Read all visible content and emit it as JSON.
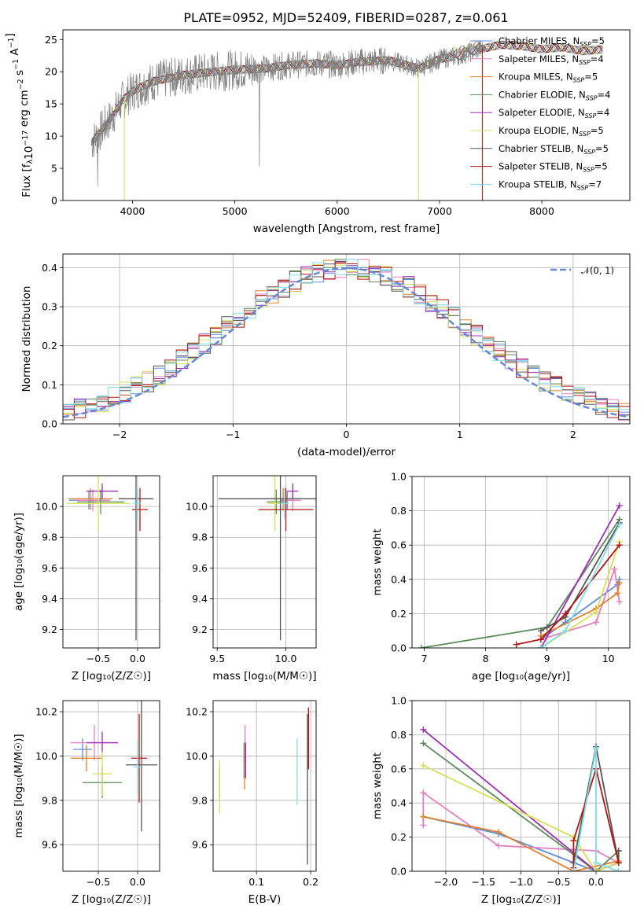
{
  "title": "PLATE=0952, MJD=52409, FIBERID=0287, z=0.061",
  "colors": {
    "Chabrier MILES": "#5f8fd9",
    "Salpeter MILES": "#e67fbf",
    "Kroupa MILES": "#e0802a",
    "Chabrier ELODIE": "#5c8a5c",
    "Salpeter ELODIE": "#9a2fb0",
    "Kroupa ELODIE": "#d4e157",
    "Chabrier STELIB": "#555555",
    "Salpeter STELIB": "#b51414",
    "Kroupa STELIB": "#7fdde6",
    "data": "#808080"
  },
  "chart_data": [
    {
      "id": "spectrum",
      "type": "line",
      "title": "PLATE=0952, MJD=52409, FIBERID=0287, z=0.061",
      "xlabel": "wavelength [Angstrom, rest frame]",
      "ylabel": "Flux [f_λ10^{-17} erg cm^{-2} s^{-1} A^{-1}]",
      "xlim": [
        3320,
        8860
      ],
      "ylim": [
        0,
        26.5
      ],
      "xticks": [
        4000,
        5000,
        6000,
        7000,
        8000
      ],
      "yticks": [
        0,
        5,
        10,
        15,
        20,
        25
      ],
      "grid": false,
      "legend_position": "right",
      "legend": [
        {
          "base": "Chabrier MILES, N",
          "sub": "SSP",
          "tail": "=5"
        },
        {
          "base": "Salpeter MILES, N",
          "sub": "SSP",
          "tail": "=4"
        },
        {
          "base": "Kroupa MILES, N",
          "sub": "SSP",
          "tail": "=5"
        },
        {
          "base": "Chabrier ELODIE, N",
          "sub": "SSP",
          "tail": "=4"
        },
        {
          "base": "Salpeter ELODIE, N",
          "sub": "SSP",
          "tail": "=4"
        },
        {
          "base": "Kroupa ELODIE, N",
          "sub": "SSP",
          "tail": "=5"
        },
        {
          "base": "Chabrier STELIB, N",
          "sub": "SSP",
          "tail": "=5"
        },
        {
          "base": "Salpeter STELIB, N",
          "sub": "SSP",
          "tail": "=5"
        },
        {
          "base": "Kroupa STELIB, N",
          "sub": "SSP",
          "tail": "=7"
        }
      ],
      "continuum": {
        "x": [
          3600,
          3700,
          3800,
          3900,
          4000,
          4200,
          4500,
          4800,
          5000,
          5300,
          5500,
          5800,
          6000,
          6200,
          6500,
          6800,
          7000,
          7200,
          7400,
          7600,
          7800,
          8000,
          8200,
          8400,
          8600
        ],
        "y": [
          9,
          11,
          13,
          15.5,
          17,
          18.5,
          19.5,
          20,
          20.3,
          20.5,
          21,
          21.3,
          21,
          21.5,
          21.8,
          20.5,
          22,
          22.5,
          23.5,
          24.2,
          24,
          23.5,
          23.8,
          23.2,
          23.5
        ]
      },
      "drops": [
        {
          "series": "Kroupa ELODIE",
          "x": 3920,
          "y": 0
        },
        {
          "series": "Kroupa ELODIE",
          "x": 6795,
          "y": 0
        },
        {
          "series": "Salpeter STELIB",
          "x": 7420,
          "y": 0
        }
      ]
    },
    {
      "id": "residual-hist",
      "type": "line",
      "xlabel": "(data-model)/error",
      "ylabel": "Normed distribution",
      "xlim": [
        -2.5,
        2.5
      ],
      "ylim": [
        0,
        0.435
      ],
      "xticks": [
        -2,
        -1,
        0,
        1,
        2
      ],
      "yticks": [
        0.0,
        0.1,
        0.2,
        0.3,
        0.4
      ],
      "grid": true,
      "legend_position": "top-right",
      "reference_label": "𝒩(0, 1)",
      "bin_width": 0.1
    },
    {
      "id": "age-vs-Z",
      "type": "scatter",
      "xlabel": "Z [log₁₀(Z/Z☉)]",
      "ylabel": "age  [log₁₀(age/yr)]",
      "xlim": [
        -0.95,
        0.28
      ],
      "ylim": [
        9.08,
        10.2
      ],
      "xticks": [
        -0.5,
        0.0
      ],
      "yticks": [
        9.2,
        9.4,
        9.6,
        9.8,
        10.0
      ],
      "grid": true,
      "points": [
        {
          "series": "Chabrier MILES",
          "x": -0.62,
          "y": 10.04,
          "xerr": 0.25,
          "yerr": 0.06
        },
        {
          "series": "Salpeter MILES",
          "x": -0.57,
          "y": 10.04,
          "xerr": 0.22,
          "yerr": 0.07
        },
        {
          "series": "Kroupa MILES",
          "x": -0.6,
          "y": 10.05,
          "xerr": 0.28,
          "yerr": 0.07
        },
        {
          "series": "Chabrier ELODIE",
          "x": -0.47,
          "y": 10.03,
          "xerr": 0.3,
          "yerr": 0.08
        },
        {
          "series": "Salpeter ELODIE",
          "x": -0.45,
          "y": 10.1,
          "xerr": 0.2,
          "yerr": 0.05
        },
        {
          "series": "Kroupa ELODIE",
          "x": -0.5,
          "y": 10.02,
          "xerr": 0.4,
          "yerr": 0.18
        },
        {
          "series": "Chabrier STELIB",
          "x": -0.02,
          "y": 10.05,
          "xerr": 0.22,
          "yerr": 0.92
        },
        {
          "series": "Salpeter STELIB",
          "x": 0.03,
          "y": 9.98,
          "xerr": 0.1,
          "yerr": 0.14
        },
        {
          "series": "Kroupa STELIB",
          "x": -0.01,
          "y": 10.02,
          "xerr": 0.05,
          "yerr": 0.1
        }
      ]
    },
    {
      "id": "age-vs-mass",
      "type": "scatter",
      "xlabel": "mass [log₁₀(M/M☉)]",
      "xlim": [
        9.47,
        10.22
      ],
      "ylim": [
        9.08,
        10.2
      ],
      "xticks": [
        9.5,
        10.0
      ],
      "yticks": [
        9.2,
        9.4,
        9.6,
        9.8,
        10.0
      ],
      "grid": true,
      "points": [
        {
          "series": "Chabrier MILES",
          "x": 10.01,
          "y": 10.04,
          "xerr": 0.05,
          "yerr": 0.06
        },
        {
          "series": "Salpeter MILES",
          "x": 10.05,
          "y": 10.04,
          "xerr": 0.06,
          "yerr": 0.07
        },
        {
          "series": "Kroupa MILES",
          "x": 9.98,
          "y": 10.05,
          "xerr": 0.06,
          "yerr": 0.07
        },
        {
          "series": "Chabrier ELODIE",
          "x": 9.93,
          "y": 10.03,
          "xerr": 0.07,
          "yerr": 0.08
        },
        {
          "series": "Salpeter ELODIE",
          "x": 10.05,
          "y": 10.1,
          "xerr": 0.04,
          "yerr": 0.05
        },
        {
          "series": "Kroupa ELODIE",
          "x": 9.92,
          "y": 10.02,
          "xerr": 0.05,
          "yerr": 0.18
        },
        {
          "series": "Chabrier STELIB",
          "x": 9.96,
          "y": 10.05,
          "xerr": 0.45,
          "yerr": 0.92
        },
        {
          "series": "Salpeter STELIB",
          "x": 10.0,
          "y": 9.98,
          "xerr": 0.2,
          "yerr": 0.14
        },
        {
          "series": "Kroupa STELIB",
          "x": 9.99,
          "y": 10.02,
          "xerr": 0.03,
          "yerr": 0.1
        }
      ]
    },
    {
      "id": "weight-vs-age",
      "type": "line",
      "xlabel": "age  [log₁₀(age/yr)]",
      "ylabel": "mass weight",
      "xlim": [
        6.8,
        10.35
      ],
      "ylim": [
        0,
        1.0
      ],
      "xticks": [
        7,
        8,
        9,
        10
      ],
      "yticks": [
        0.0,
        0.2,
        0.4,
        0.6,
        0.8,
        1.0
      ],
      "grid": true,
      "series": [
        {
          "name": "Chabrier MILES",
          "x": [
            8.9,
            9.3,
            10.15,
            10.18
          ],
          "y": [
            0.05,
            0.15,
            0.37,
            0.4
          ]
        },
        {
          "name": "Salpeter MILES",
          "x": [
            8.9,
            9.8,
            10.1,
            10.18
          ],
          "y": [
            0.05,
            0.15,
            0.46,
            0.27
          ]
        },
        {
          "name": "Kroupa MILES",
          "x": [
            8.9,
            9.8,
            10.15,
            10.18
          ],
          "y": [
            0.07,
            0.23,
            0.32,
            0.38
          ]
        },
        {
          "name": "Chabrier ELODIE",
          "x": [
            6.95,
            9.0,
            10.18
          ],
          "y": [
            0.0,
            0.12,
            0.75
          ]
        },
        {
          "name": "Salpeter ELODIE",
          "x": [
            8.9,
            10.18
          ],
          "y": [
            0.0,
            0.83
          ]
        },
        {
          "name": "Kroupa ELODIE",
          "x": [
            8.9,
            9.8,
            10.18
          ],
          "y": [
            0.0,
            0.21,
            0.62
          ]
        },
        {
          "name": "Chabrier STELIB",
          "x": [
            8.9,
            9.0,
            9.3,
            10.18
          ],
          "y": [
            0.1,
            0.12,
            0.18,
            0.73
          ]
        },
        {
          "name": "Salpeter STELIB",
          "x": [
            8.5,
            8.9,
            9.3,
            10.18
          ],
          "y": [
            0.02,
            0.05,
            0.2,
            0.6
          ]
        },
        {
          "name": "Kroupa STELIB",
          "x": [
            8.9,
            9.3,
            10.18
          ],
          "y": [
            0.0,
            0.1,
            0.72
          ]
        }
      ]
    },
    {
      "id": "mass-vs-Z",
      "type": "scatter",
      "xlabel": "Z [log₁₀(Z/Z☉)]",
      "ylabel": "mass [log₁₀(M/M☉)]",
      "xlim": [
        -0.95,
        0.28
      ],
      "ylim": [
        9.48,
        10.25
      ],
      "xticks": [
        -0.5,
        0.0
      ],
      "yticks": [
        9.6,
        9.8,
        10.0,
        10.2
      ],
      "grid": true,
      "points": [
        {
          "series": "Chabrier MILES",
          "x": -0.7,
          "y": 10.03,
          "xerr": 0.12,
          "yerr": 0.05
        },
        {
          "series": "Salpeter MILES",
          "x": -0.55,
          "y": 10.06,
          "xerr": 0.3,
          "yerr": 0.08
        },
        {
          "series": "Kroupa MILES",
          "x": -0.65,
          "y": 9.99,
          "xerr": 0.2,
          "yerr": 0.06
        },
        {
          "series": "Chabrier ELODIE",
          "x": -0.45,
          "y": 9.88,
          "xerr": 0.25,
          "yerr": 0.07
        },
        {
          "series": "Salpeter ELODIE",
          "x": -0.45,
          "y": 10.06,
          "xerr": 0.2,
          "yerr": 0.05
        },
        {
          "series": "Kroupa ELODIE",
          "x": -0.45,
          "y": 9.92,
          "xerr": 0.12,
          "yerr": 0.1
        },
        {
          "series": "Chabrier STELIB",
          "x": 0.05,
          "y": 9.96,
          "xerr": 0.2,
          "yerr": 0.3
        },
        {
          "series": "Salpeter STELIB",
          "x": 0.02,
          "y": 9.99,
          "xerr": 0.1,
          "yerr": 0.2
        },
        {
          "series": "Kroupa STELIB",
          "x": 0.0,
          "y": 9.95,
          "xerr": 0.05,
          "yerr": 0.12
        }
      ]
    },
    {
      "id": "mass-vs-ebv",
      "type": "scatter",
      "xlabel": "E(B-V)",
      "xlim": [
        0.02,
        0.21
      ],
      "ylim": [
        9.48,
        10.25
      ],
      "xticks": [
        0.1,
        0.2
      ],
      "yticks": [
        9.6,
        9.8,
        10.0,
        10.2
      ],
      "grid": true,
      "points": [
        {
          "series": "Chabrier MILES",
          "x": 0.077,
          "y": 9.98,
          "xerr": 0.001,
          "yerr": 0.08
        },
        {
          "series": "Salpeter MILES",
          "x": 0.079,
          "y": 10.06,
          "xerr": 0.001,
          "yerr": 0.08
        },
        {
          "series": "Kroupa MILES",
          "x": 0.078,
          "y": 9.95,
          "xerr": 0.001,
          "yerr": 0.1
        },
        {
          "series": "Chabrier ELODIE",
          "x": 0.032,
          "y": 9.88,
          "xerr": 0.001,
          "yerr": 0.07
        },
        {
          "series": "Salpeter ELODIE",
          "x": 0.08,
          "y": 9.98,
          "xerr": 0.001,
          "yerr": 0.08
        },
        {
          "series": "Kroupa ELODIE",
          "x": 0.032,
          "y": 9.86,
          "xerr": 0.001,
          "yerr": 0.12
        },
        {
          "series": "Chabrier STELIB",
          "x": 0.194,
          "y": 9.85,
          "xerr": 0.001,
          "yerr": 0.34
        },
        {
          "series": "Salpeter STELIB",
          "x": 0.196,
          "y": 10.08,
          "xerr": 0.001,
          "yerr": 0.14
        },
        {
          "series": "Kroupa STELIB",
          "x": 0.175,
          "y": 9.93,
          "xerr": 0.001,
          "yerr": 0.15
        }
      ]
    },
    {
      "id": "weight-vs-Z",
      "type": "line",
      "xlabel": "Z [log₁₀(Z/Z☉)]",
      "ylabel": "mass weight",
      "xlim": [
        -2.45,
        0.45
      ],
      "ylim": [
        0,
        1.0
      ],
      "xticks": [
        -2.0,
        -1.5,
        -1.0,
        -0.5,
        0.0
      ],
      "yticks": [
        0.0,
        0.2,
        0.4,
        0.6,
        0.8,
        1.0
      ],
      "grid": true,
      "series": [
        {
          "name": "Chabrier MILES",
          "x": [
            -2.3,
            -1.3,
            0.0,
            0.3
          ],
          "y": [
            0.32,
            0.22,
            0.0,
            0.05
          ]
        },
        {
          "name": "Salpeter MILES",
          "x": [
            -2.3,
            -2.3,
            -1.3,
            0.0,
            0.3
          ],
          "y": [
            0.27,
            0.46,
            0.15,
            0.12,
            0.05
          ]
        },
        {
          "name": "Kroupa MILES",
          "x": [
            -2.3,
            -1.3,
            -0.3,
            0.3
          ],
          "y": [
            0.32,
            0.23,
            0.0,
            0.06
          ]
        },
        {
          "name": "Chabrier ELODIE",
          "x": [
            -2.3,
            0.0,
            0.3
          ],
          "y": [
            0.75,
            0.0,
            0.12
          ]
        },
        {
          "name": "Salpeter ELODIE",
          "x": [
            -2.3,
            0.0,
            0.3
          ],
          "y": [
            0.83,
            0.0,
            0.05
          ]
        },
        {
          "name": "Kroupa ELODIE",
          "x": [
            -2.3,
            -0.3,
            0.0,
            0.3
          ],
          "y": [
            0.62,
            0.2,
            0.0,
            0.05
          ]
        },
        {
          "name": "Chabrier STELIB",
          "x": [
            -0.3,
            0.0,
            0.3,
            0.3
          ],
          "y": [
            0.05,
            0.73,
            0.05,
            0.12
          ]
        },
        {
          "name": "Salpeter STELIB",
          "x": [
            -0.3,
            -0.3,
            0.0,
            0.3
          ],
          "y": [
            0.02,
            0.18,
            0.6,
            0.05
          ]
        },
        {
          "name": "Kroupa STELIB",
          "x": [
            -0.3,
            0.0,
            0.0,
            0.3
          ],
          "y": [
            0.0,
            0.72,
            0.05,
            0.0
          ]
        }
      ]
    }
  ]
}
